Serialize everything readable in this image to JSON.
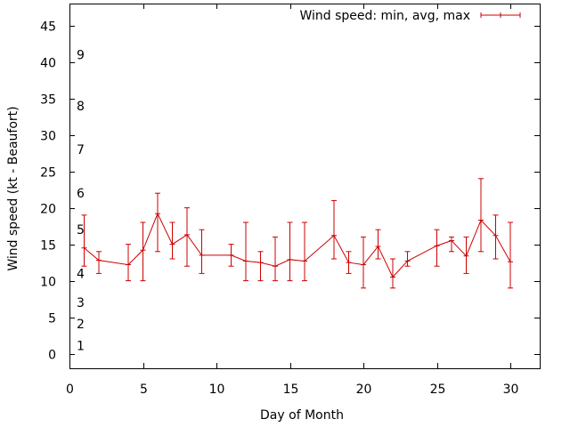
{
  "chart_data": {
    "type": "line",
    "title": "",
    "xlabel": "Day of Month",
    "ylabel": "Wind speed (kt - Beaufort)",
    "xlim": [
      0,
      32
    ],
    "ylim": [
      -2,
      48
    ],
    "xticks": [
      0,
      5,
      10,
      15,
      20,
      25,
      30
    ],
    "yticks": [
      0,
      5,
      10,
      15,
      20,
      25,
      30,
      35,
      40,
      45
    ],
    "grid": false,
    "legend_position": "top-right",
    "beaufort_labels": [
      {
        "label": "1",
        "y": 1.1
      },
      {
        "label": "2",
        "y": 4.1
      },
      {
        "label": "3",
        "y": 7.0
      },
      {
        "label": "4",
        "y": 11.0
      },
      {
        "label": "5",
        "y": 17.0
      },
      {
        "label": "6",
        "y": 22.0
      },
      {
        "label": "7",
        "y": 28.0
      },
      {
        "label": "8",
        "y": 34.0
      },
      {
        "label": "9",
        "y": 41.0
      }
    ],
    "series": [
      {
        "name": "Wind speed: min, avg, max",
        "color": "#cc0000",
        "points": [
          {
            "x": 1,
            "min": 12,
            "avg": 14.5,
            "max": 19
          },
          {
            "x": 2,
            "min": 11,
            "avg": 12.8,
            "max": 14
          },
          {
            "x": 4,
            "min": 10,
            "avg": 12.2,
            "max": 15
          },
          {
            "x": 5,
            "min": 10,
            "avg": 14.2,
            "max": 18
          },
          {
            "x": 6,
            "min": 14,
            "avg": 19.2,
            "max": 22
          },
          {
            "x": 7,
            "min": 13,
            "avg": 15.0,
            "max": 18
          },
          {
            "x": 8,
            "min": 12,
            "avg": 16.3,
            "max": 20
          },
          {
            "x": 9,
            "min": 11,
            "avg": 13.5,
            "max": 17
          },
          {
            "x": 11,
            "min": 12,
            "avg": 13.5,
            "max": 15
          },
          {
            "x": 12,
            "min": 10,
            "avg": 12.7,
            "max": 18
          },
          {
            "x": 13,
            "min": 10,
            "avg": 12.5,
            "max": 14
          },
          {
            "x": 14,
            "min": 10,
            "avg": 12.0,
            "max": 16
          },
          {
            "x": 15,
            "min": 10,
            "avg": 12.9,
            "max": 18
          },
          {
            "x": 16,
            "min": 10,
            "avg": 12.7,
            "max": 18
          },
          {
            "x": 18,
            "min": 13,
            "avg": 16.2,
            "max": 21
          },
          {
            "x": 19,
            "min": 11,
            "avg": 12.5,
            "max": 14
          },
          {
            "x": 20,
            "min": 9,
            "avg": 12.2,
            "max": 16
          },
          {
            "x": 21,
            "min": 13,
            "avg": 14.7,
            "max": 17
          },
          {
            "x": 22,
            "min": 9,
            "avg": 10.5,
            "max": 13
          },
          {
            "x": 23,
            "min": 12,
            "avg": 12.7,
            "max": 14
          },
          {
            "x": 25,
            "min": 12,
            "avg": 14.8,
            "max": 17
          },
          {
            "x": 26,
            "min": 14,
            "avg": 15.5,
            "max": 16
          },
          {
            "x": 27,
            "min": 11,
            "avg": 13.4,
            "max": 16
          },
          {
            "x": 28,
            "min": 14,
            "avg": 18.3,
            "max": 24
          },
          {
            "x": 29,
            "min": 13,
            "avg": 16.2,
            "max": 19
          },
          {
            "x": 30,
            "min": 9,
            "avg": 12.6,
            "max": 18
          }
        ]
      }
    ]
  }
}
